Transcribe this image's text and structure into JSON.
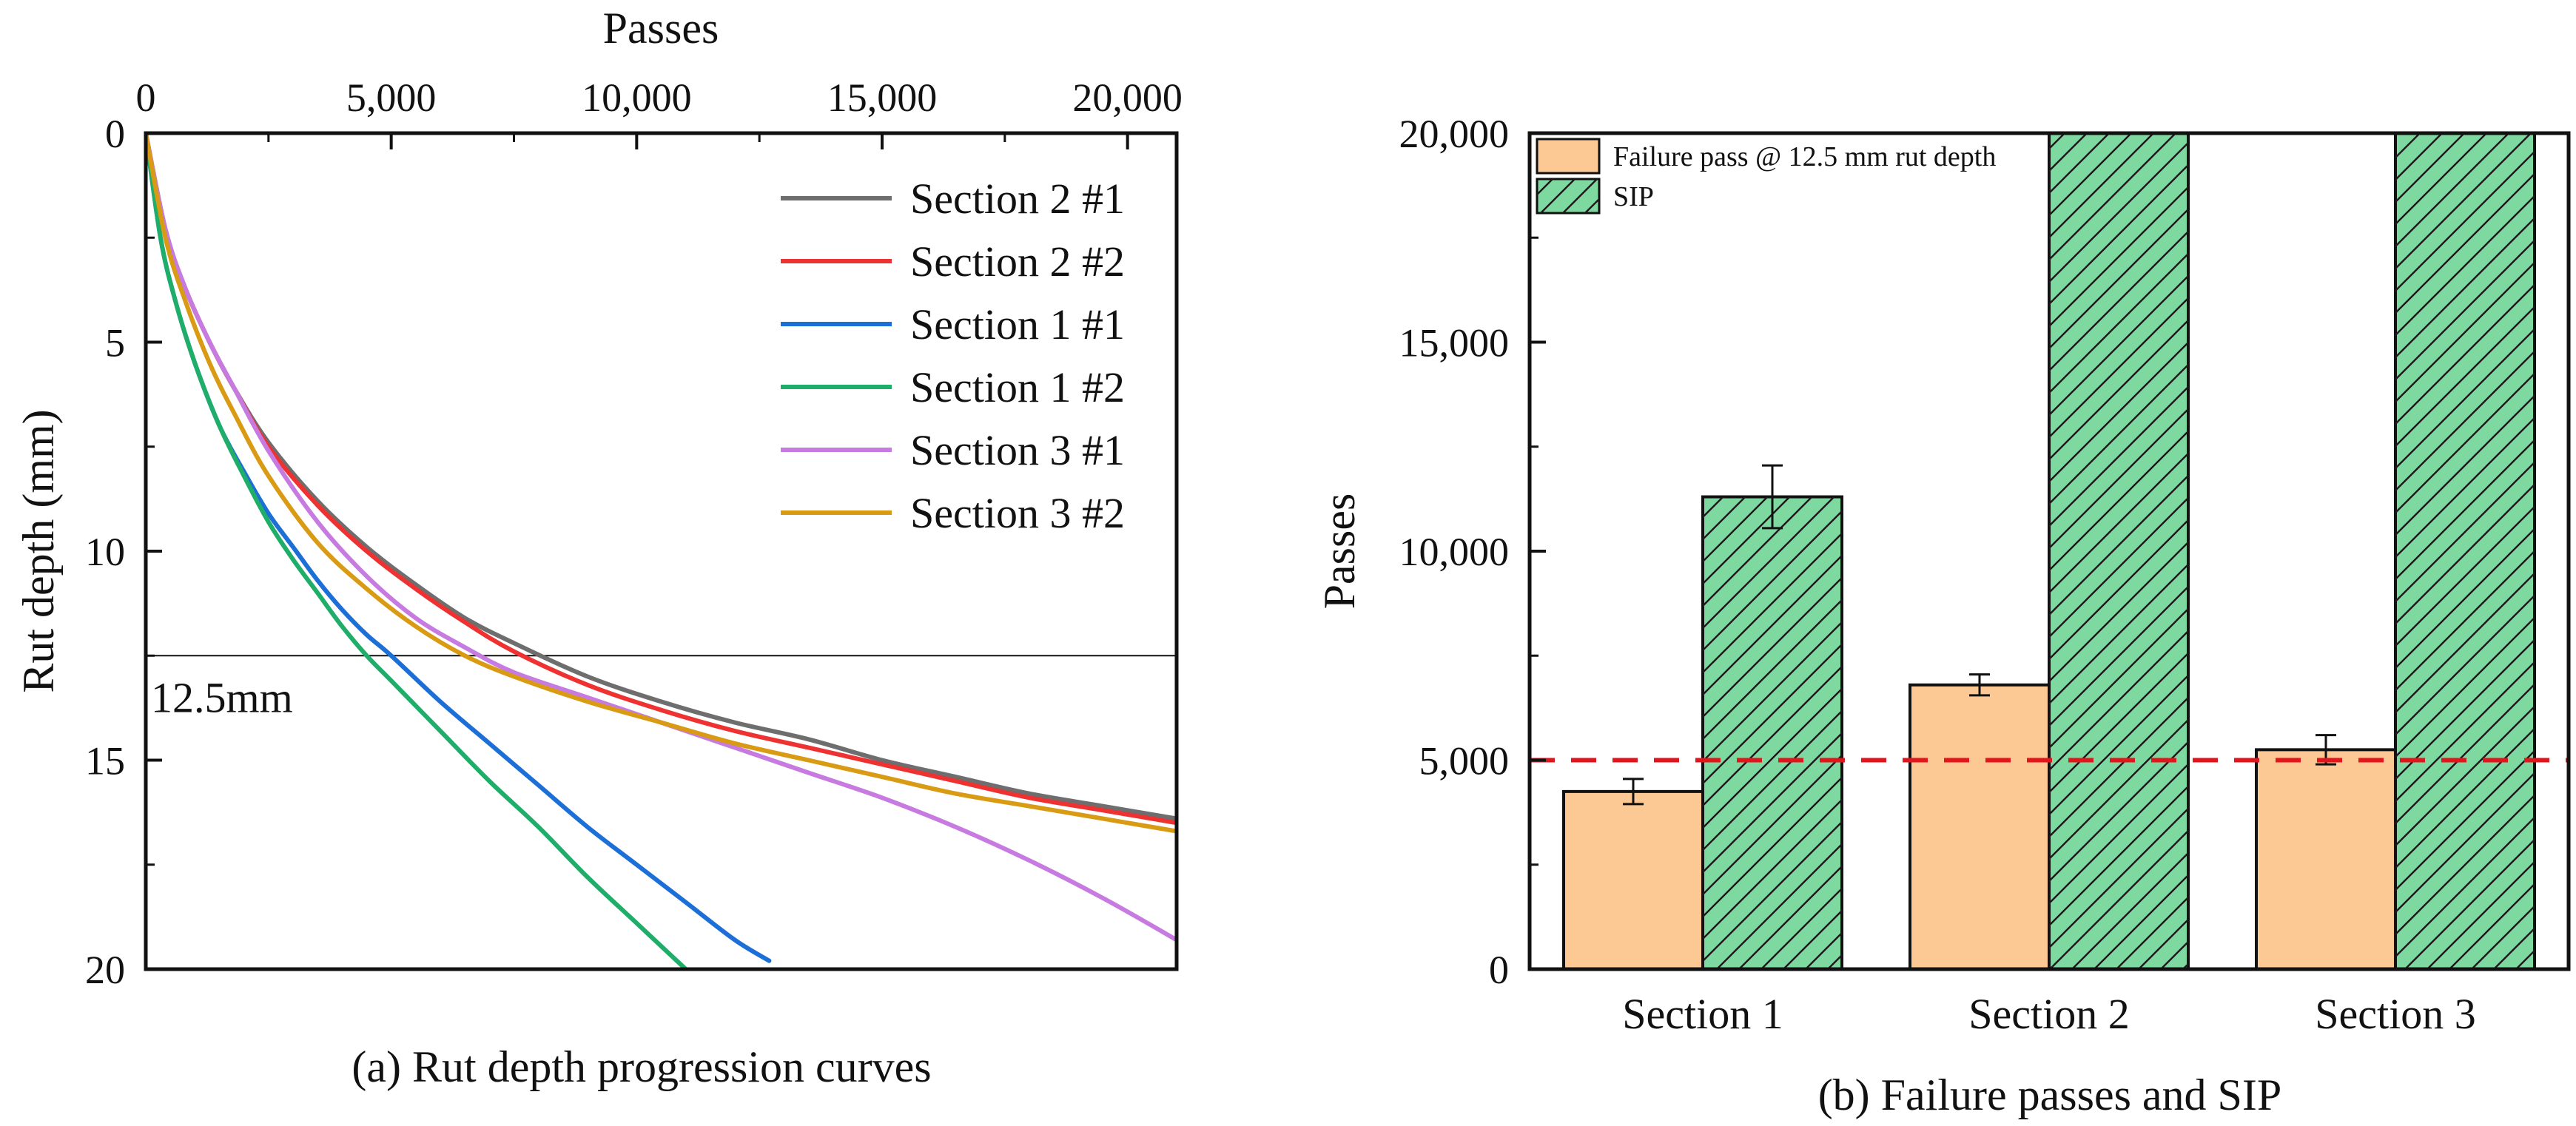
{
  "chart_data": [
    {
      "type": "line",
      "caption": "(a) Rut depth progression curves",
      "xlabel": "Passes",
      "ylabel": "Rut depth (mm)",
      "xlim": [
        0,
        21000
      ],
      "ylim": [
        0,
        20
      ],
      "y_inverted": true,
      "x_axis_position": "top",
      "x_ticks": [
        0,
        5000,
        10000,
        15000,
        20000
      ],
      "x_tick_labels": [
        "0",
        "5,000",
        "10,000",
        "15,000",
        "20,000"
      ],
      "y_ticks": [
        0,
        5,
        10,
        15,
        20
      ],
      "y_tick_labels": [
        "0",
        "5",
        "10",
        "15",
        "20"
      ],
      "reference_line": {
        "y": 12.5,
        "label": "12.5mm"
      },
      "legend_position": "top-right",
      "series": [
        {
          "name": "Section 2 #1",
          "color": "#6e6e6e",
          "x": [
            0,
            400,
            800,
            1300,
            1800,
            2500,
            3500,
            4500,
            5500,
            6500,
            7500,
            9000,
            10500,
            12000,
            13500,
            15000,
            16500,
            18000,
            19500,
            21000
          ],
          "y": [
            0,
            2.3,
            3.7,
            5.0,
            6.1,
            7.4,
            8.8,
            9.9,
            10.8,
            11.6,
            12.2,
            13.0,
            13.6,
            14.1,
            14.5,
            15.0,
            15.4,
            15.8,
            16.1,
            16.4
          ]
        },
        {
          "name": "Section 2 #2",
          "color": "#ee3131",
          "x": [
            0,
            400,
            800,
            1300,
            1800,
            2500,
            3500,
            4500,
            5500,
            6500,
            7500,
            9000,
            10500,
            12000,
            13500,
            15000,
            16500,
            18000,
            19500,
            21000
          ],
          "y": [
            0,
            2.3,
            3.7,
            5.0,
            6.1,
            7.5,
            8.9,
            10.0,
            10.9,
            11.7,
            12.4,
            13.2,
            13.8,
            14.3,
            14.7,
            15.1,
            15.5,
            15.9,
            16.2,
            16.5
          ]
        },
        {
          "name": "Section 1 #1",
          "color": "#1c6fd6",
          "x": [
            0,
            300,
            600,
            1000,
            1500,
            2000,
            2500,
            3000,
            3500,
            4000,
            4500,
            5000,
            6000,
            7000,
            8000,
            9000,
            10000,
            11000,
            12000,
            12700
          ],
          "y": [
            0,
            2.5,
            4.0,
            5.5,
            7.0,
            8.1,
            9.1,
            9.9,
            10.7,
            11.4,
            12.0,
            12.5,
            13.6,
            14.6,
            15.6,
            16.6,
            17.5,
            18.4,
            19.3,
            19.8
          ]
        },
        {
          "name": "Section 1 #2",
          "color": "#1fae6a",
          "x": [
            0,
            300,
            600,
            1000,
            1500,
            2000,
            2500,
            3000,
            3500,
            4000,
            4500,
            5000,
            6000,
            7000,
            8000,
            9000,
            10000,
            11000
          ],
          "y": [
            0,
            2.5,
            4.0,
            5.5,
            7.0,
            8.2,
            9.3,
            10.2,
            11.0,
            11.8,
            12.5,
            13.1,
            14.3,
            15.5,
            16.6,
            17.8,
            18.9,
            20.0
          ]
        },
        {
          "name": "Section 3 #1",
          "color": "#c77be0",
          "x": [
            0,
            400,
            800,
            1300,
            1800,
            2500,
            3500,
            4500,
            5500,
            6500,
            7500,
            9000,
            10500,
            12000,
            13500,
            15000,
            16500,
            18000,
            19500,
            21000
          ],
          "y": [
            0,
            2.3,
            3.7,
            5.0,
            6.1,
            7.6,
            9.3,
            10.6,
            11.6,
            12.3,
            12.9,
            13.5,
            14.1,
            14.7,
            15.3,
            15.9,
            16.6,
            17.4,
            18.3,
            19.3
          ]
        },
        {
          "name": "Section 3 #2",
          "color": "#d99a14",
          "x": [
            0,
            400,
            800,
            1300,
            1800,
            2500,
            3500,
            4500,
            5500,
            6500,
            7500,
            9000,
            10500,
            12000,
            13500,
            15000,
            16500,
            18000,
            19500,
            21000
          ],
          "y": [
            0,
            2.5,
            4.0,
            5.5,
            6.7,
            8.2,
            9.8,
            10.9,
            11.8,
            12.5,
            13.0,
            13.6,
            14.1,
            14.6,
            15.0,
            15.4,
            15.8,
            16.1,
            16.4,
            16.7
          ]
        }
      ]
    },
    {
      "type": "bar",
      "caption": "(b) Failure passes and SIP",
      "xlabel": "",
      "ylabel": "Passes",
      "ylim": [
        0,
        20000
      ],
      "y_ticks": [
        0,
        5000,
        10000,
        15000,
        20000
      ],
      "y_tick_labels": [
        "0",
        "5,000",
        "10,000",
        "15,000",
        "20,000"
      ],
      "categories": [
        "Section 1",
        "Section 2",
        "Section 3"
      ],
      "reference_line": {
        "y": 5000
      },
      "legend_position": "top-left",
      "series": [
        {
          "name": "Failure pass @ 12.5 mm rut depth",
          "color": "#fcc995",
          "hatch": false,
          "values": [
            4250,
            6800,
            5250
          ],
          "error": [
            300,
            250,
            350
          ]
        },
        {
          "name": "SIP",
          "color": "#7dd9a0",
          "hatch": true,
          "values": [
            11300,
            20000,
            20000
          ],
          "error": [
            750,
            null,
            null
          ]
        }
      ]
    }
  ]
}
